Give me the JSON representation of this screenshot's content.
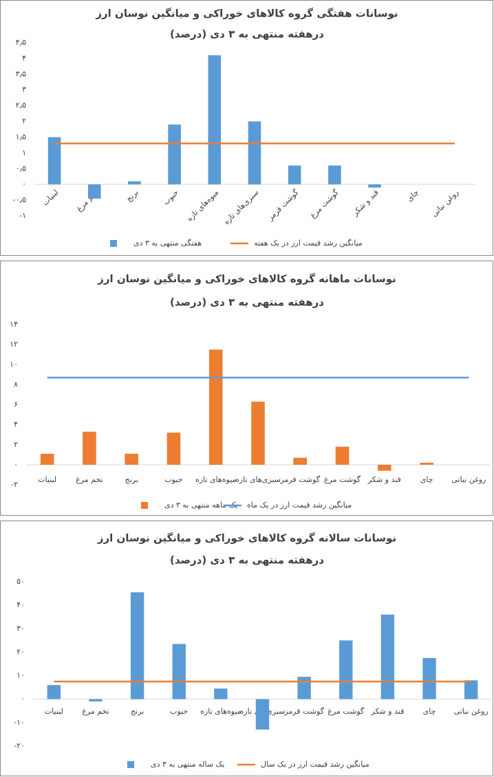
{
  "chart_data": [
    {
      "type": "bar",
      "title": "نوسانات هفتگی گروه کالاهای خوراکی  و میانگین نوسان ارز",
      "subtitle": "درهفته منتهی به ۳ دی (درصد)",
      "categories": [
        "لبنیات",
        "تخم مرغ",
        "برنج",
        "حبوب",
        "میوه‌های تازه",
        "سبزی‌های تازه",
        "گوشت قرمز",
        "گوشت مرغ",
        "قند و شکر",
        "چای",
        "روغن نباتی"
      ],
      "series": [
        {
          "name": "هفتگی منتهی به ۳ دی",
          "type": "bar",
          "color": "#5b9bd5",
          "values": [
            1.5,
            -0.45,
            0.1,
            1.9,
            4.1,
            2.0,
            0.6,
            0.6,
            -0.1,
            0,
            0
          ]
        },
        {
          "name": "میانگین رشد  قیمت ارز در یک هفته",
          "type": "line",
          "color": "#ed7d31",
          "values": [
            1.3,
            1.3,
            1.3,
            1.3,
            1.3,
            1.3,
            1.3,
            1.3,
            1.3,
            1.3,
            1.3
          ]
        }
      ],
      "ylim": [
        -1,
        4.5
      ],
      "yticks": [
        {
          "value": -1,
          "label": "-۱"
        },
        {
          "value": -0.5,
          "label": "-۰٫۵"
        },
        {
          "value": 0,
          "label": "۰"
        },
        {
          "value": 0.5,
          "label": "۰٫۵"
        },
        {
          "value": 1,
          "label": "۱"
        },
        {
          "value": 1.5,
          "label": "۱٫۵"
        },
        {
          "value": 2,
          "label": "۲"
        },
        {
          "value": 2.5,
          "label": "۲٫۵"
        },
        {
          "value": 3,
          "label": "۳"
        },
        {
          "value": 3.5,
          "label": "۳٫۵"
        },
        {
          "value": 4,
          "label": "۴"
        },
        {
          "value": 4.5,
          "label": "۴٫۵"
        }
      ]
    },
    {
      "type": "bar",
      "title": "نوسانات ماهانه گروه کالاهای خوراکی  و میانگین نوسان ارز",
      "subtitle": "درهفته منتهی به ۳ دی (درصد)",
      "categories": [
        "لبنیات",
        "تخم مرغ",
        "برنج",
        "حبوب",
        "میوه‌های تازه",
        "سبزی‌های تازه",
        "گوشت قرمز",
        "گوشت مرغ",
        "قند و شکر",
        "چای",
        "روغن نباتی"
      ],
      "series": [
        {
          "name": "یک ماهه منتهی به ۳ دی",
          "type": "bar",
          "color": "#ed7d31",
          "values": [
            1.1,
            3.3,
            1.1,
            3.2,
            11.5,
            6.3,
            0.7,
            1.8,
            -0.6,
            0.2,
            0
          ]
        },
        {
          "name": "میانگین رشد  قیمت ارز در یک ماه",
          "type": "line",
          "color": "#5b9bd5",
          "values": [
            8.7,
            8.7,
            8.7,
            8.7,
            8.7,
            8.7,
            8.7,
            8.7,
            8.7,
            8.7,
            8.7
          ]
        }
      ],
      "ylim": [
        -2,
        14
      ],
      "yticks": [
        {
          "value": -2,
          "label": "-۲"
        },
        {
          "value": 0,
          "label": "۰"
        },
        {
          "value": 2,
          "label": "۲"
        },
        {
          "value": 4,
          "label": "۴"
        },
        {
          "value": 6,
          "label": "۶"
        },
        {
          "value": 8,
          "label": "۸"
        },
        {
          "value": 10,
          "label": "۱۰"
        },
        {
          "value": 12,
          "label": "۱۲"
        },
        {
          "value": 14,
          "label": "۱۴"
        }
      ]
    },
    {
      "type": "bar",
      "title": "نوسانات سالانه گروه کالاهای خوراکی  و میانگین نوسان ارز",
      "subtitle": "درهفته منتهی به ۳ دی (درصد)",
      "categories": [
        "لبنیات",
        "تخم مرغ",
        "برنج",
        "حبوب",
        "میوه‌های تازه",
        "سبزی‌های تازه",
        "گوشت قرمز",
        "گوشت مرغ",
        "قند و شکر",
        "چای",
        "روغن نباتی"
      ],
      "series": [
        {
          "name": "یک ساله منتهی به ۳ دی",
          "type": "bar",
          "color": "#5b9bd5",
          "values": [
            6,
            -1,
            45.5,
            23.5,
            4.5,
            -13,
            9.5,
            25,
            36,
            17.5,
            8
          ]
        },
        {
          "name": "میانگین رشد  قیمت ارز در یک سال",
          "type": "line",
          "color": "#ed7d31",
          "values": [
            7.5,
            7.5,
            7.5,
            7.5,
            7.5,
            7.5,
            7.5,
            7.5,
            7.5,
            7.5,
            7.5
          ]
        }
      ],
      "ylim": [
        -20,
        50
      ],
      "yticks": [
        {
          "value": -20,
          "label": "-۲۰"
        },
        {
          "value": -10,
          "label": "-۱۰"
        },
        {
          "value": 0,
          "label": "۰"
        },
        {
          "value": 10,
          "label": "۱۰"
        },
        {
          "value": 20,
          "label": "۲۰"
        },
        {
          "value": 30,
          "label": "۳۰"
        },
        {
          "value": 40,
          "label": "۴۰"
        },
        {
          "value": 50,
          "label": "۵۰"
        }
      ]
    }
  ]
}
